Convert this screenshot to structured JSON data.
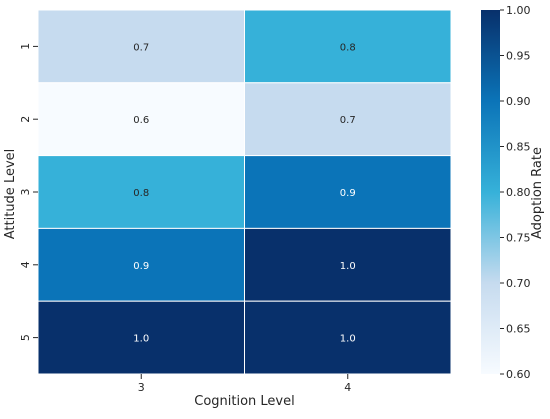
{
  "chart_data": {
    "type": "heatmap",
    "title": "",
    "xlabel": "Cognition Level",
    "ylabel": "Attitude Level",
    "x_categories": [
      "3",
      "4"
    ],
    "y_categories": [
      "1",
      "2",
      "3",
      "4",
      "5"
    ],
    "values": [
      [
        0.7,
        0.8
      ],
      [
        0.6,
        0.7
      ],
      [
        0.8,
        0.9
      ],
      [
        0.9,
        1.0
      ],
      [
        1.0,
        1.0
      ]
    ],
    "value_labels": [
      [
        "0.7",
        "0.8"
      ],
      [
        "0.6",
        "0.7"
      ],
      [
        "0.8",
        "0.9"
      ],
      [
        "0.9",
        "1.0"
      ],
      [
        "1.0",
        "1.0"
      ]
    ],
    "colorbar": {
      "label": "Adoption Rate",
      "range": [
        0.6,
        1.0
      ],
      "ticks": [
        "0.60",
        "0.65",
        "0.70",
        "0.75",
        "0.80",
        "0.85",
        "0.90",
        "0.95",
        "1.00"
      ],
      "colormap": "Blues",
      "colormap_stops": [
        "#f7fbff",
        "#c6dbef",
        "#36b1d9",
        "#0b74b8",
        "#08306b"
      ]
    },
    "grid": false,
    "cell_border_color": "#ffffff"
  }
}
